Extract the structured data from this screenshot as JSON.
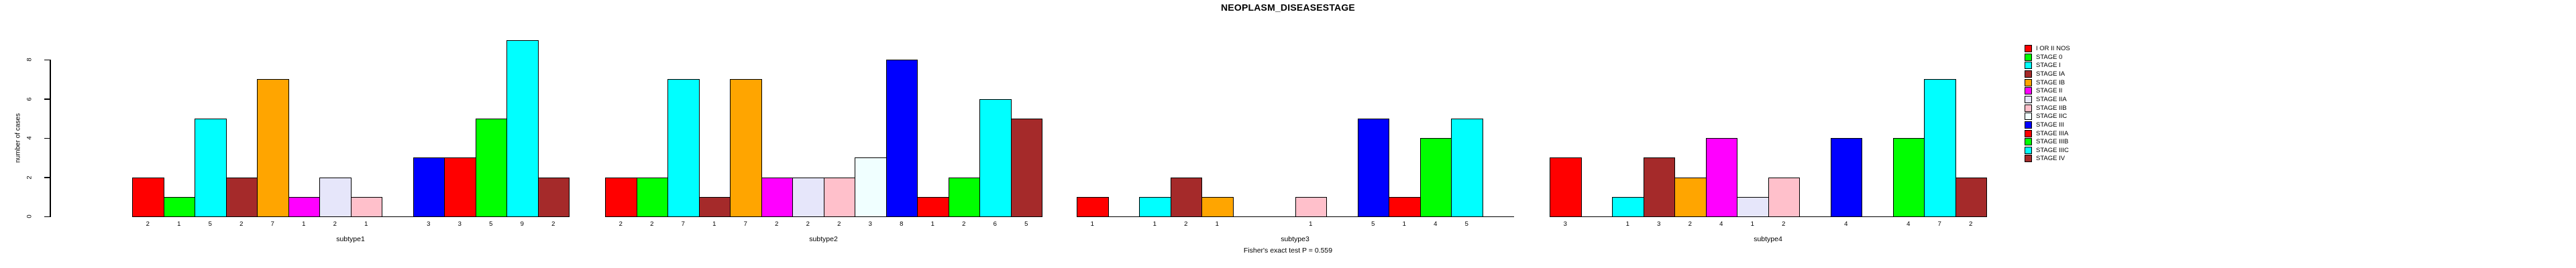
{
  "chart_data": {
    "type": "bar",
    "title": "NEOPLASM_DISEASESTAGE",
    "ylabel": "number of cases",
    "ylim": [
      0,
      8
    ],
    "yticks": [
      0,
      2,
      4,
      6,
      8
    ],
    "grid": false,
    "legend_position": "right",
    "footnote": "Fisher's exact test P = 0.559",
    "bar_value_labels_shown": true,
    "zero_value_bars": "omitted (no bar, no label)",
    "categories": [
      "I OR II NOS",
      "STAGE 0",
      "STAGE I",
      "STAGE IA",
      "STAGE IB",
      "STAGE II",
      "STAGE IIA",
      "STAGE IIB",
      "STAGE IIC",
      "STAGE III",
      "STAGE IIIA",
      "STAGE IIIB",
      "STAGE IIIC",
      "STAGE IV"
    ],
    "colors": [
      "#FF0000",
      "#00FF00",
      "#00FFFF",
      "#A52A2A",
      "#FFA500",
      "#FF00FF",
      "#E6E6FA",
      "#FFC0CB",
      "#F0FFFF",
      "#0000FF",
      "#FF0000",
      "#00FF00",
      "#00FFFF",
      "#A52A2A"
    ],
    "groups": [
      {
        "label": "subtype1",
        "values": [
          2,
          1,
          5,
          2,
          7,
          1,
          2,
          1,
          0,
          3,
          3,
          5,
          9,
          2
        ]
      },
      {
        "label": "subtype2",
        "values": [
          2,
          2,
          7,
          1,
          7,
          2,
          2,
          2,
          3,
          8,
          1,
          2,
          6,
          5
        ]
      },
      {
        "label": "subtype3",
        "values": [
          1,
          0,
          1,
          2,
          1,
          0,
          0,
          1,
          0,
          5,
          1,
          4,
          5,
          0
        ]
      },
      {
        "label": "subtype4",
        "values": [
          3,
          0,
          1,
          3,
          2,
          4,
          1,
          2,
          0,
          4,
          0,
          4,
          7,
          2
        ]
      }
    ]
  }
}
